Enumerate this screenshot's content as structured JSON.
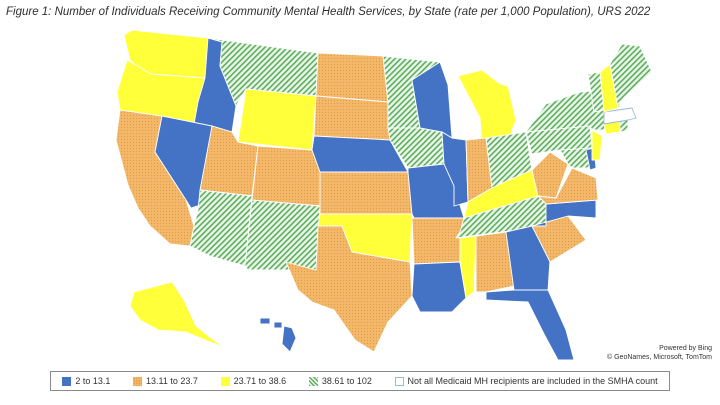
{
  "title": "Figure 1: Number of Individuals Receiving Community Mental Health Services, by State (rate per 1,000 Population), URS 2022",
  "credits": {
    "line1": "Powered by Bing",
    "line2": "© GeoNames, Microsoft, TomTom"
  },
  "legend": [
    {
      "label": "2 to 13.1",
      "category": "blue"
    },
    {
      "label": "13.11 to 23.7",
      "category": "orange"
    },
    {
      "label": "23.71 to 38.6",
      "category": "yellow"
    },
    {
      "label": "38.61 to 102",
      "category": "green"
    },
    {
      "label": "Not all Medicaid MH recipients are included in the SMHA count",
      "category": "white"
    }
  ],
  "colors": {
    "blue": "#4472c4",
    "orange": "#f4b86a",
    "yellow": "#ffff3a",
    "green": "#5fad5f",
    "border": "#ffffff"
  },
  "states": [
    {
      "abbr": "WA",
      "category": "yellow"
    },
    {
      "abbr": "OR",
      "category": "yellow"
    },
    {
      "abbr": "CA",
      "category": "orange"
    },
    {
      "abbr": "ID",
      "category": "blue"
    },
    {
      "abbr": "NV",
      "category": "blue"
    },
    {
      "abbr": "MT",
      "category": "green"
    },
    {
      "abbr": "WY",
      "category": "yellow"
    },
    {
      "abbr": "UT",
      "category": "orange"
    },
    {
      "abbr": "AZ",
      "category": "green"
    },
    {
      "abbr": "CO",
      "category": "orange"
    },
    {
      "abbr": "NM",
      "category": "green"
    },
    {
      "abbr": "ND",
      "category": "orange"
    },
    {
      "abbr": "SD",
      "category": "orange"
    },
    {
      "abbr": "NE",
      "category": "blue"
    },
    {
      "abbr": "KS",
      "category": "orange"
    },
    {
      "abbr": "OK",
      "category": "yellow"
    },
    {
      "abbr": "TX",
      "category": "orange"
    },
    {
      "abbr": "MN",
      "category": "green"
    },
    {
      "abbr": "IA",
      "category": "green"
    },
    {
      "abbr": "MO",
      "category": "blue"
    },
    {
      "abbr": "AR",
      "category": "orange"
    },
    {
      "abbr": "LA",
      "category": "blue"
    },
    {
      "abbr": "WI",
      "category": "blue"
    },
    {
      "abbr": "IL",
      "category": "blue"
    },
    {
      "abbr": "MI",
      "category": "yellow"
    },
    {
      "abbr": "IN",
      "category": "orange"
    },
    {
      "abbr": "OH",
      "category": "green"
    },
    {
      "abbr": "KY",
      "category": "yellow"
    },
    {
      "abbr": "TN",
      "category": "green"
    },
    {
      "abbr": "MS",
      "category": "yellow"
    },
    {
      "abbr": "AL",
      "category": "orange"
    },
    {
      "abbr": "GA",
      "category": "blue"
    },
    {
      "abbr": "FL",
      "category": "blue"
    },
    {
      "abbr": "SC",
      "category": "orange"
    },
    {
      "abbr": "NC",
      "category": "blue"
    },
    {
      "abbr": "VA",
      "category": "orange"
    },
    {
      "abbr": "WV",
      "category": "orange"
    },
    {
      "abbr": "MD",
      "category": "green"
    },
    {
      "abbr": "DE",
      "category": "blue"
    },
    {
      "abbr": "PA",
      "category": "green"
    },
    {
      "abbr": "NJ",
      "category": "yellow"
    },
    {
      "abbr": "NY",
      "category": "green"
    },
    {
      "abbr": "CT",
      "category": "yellow"
    },
    {
      "abbr": "RI",
      "category": "green"
    },
    {
      "abbr": "MA",
      "category": "white"
    },
    {
      "abbr": "VT",
      "category": "green"
    },
    {
      "abbr": "NH",
      "category": "yellow"
    },
    {
      "abbr": "ME",
      "category": "green"
    },
    {
      "abbr": "AK",
      "category": "yellow"
    },
    {
      "abbr": "HI",
      "category": "blue"
    }
  ]
}
